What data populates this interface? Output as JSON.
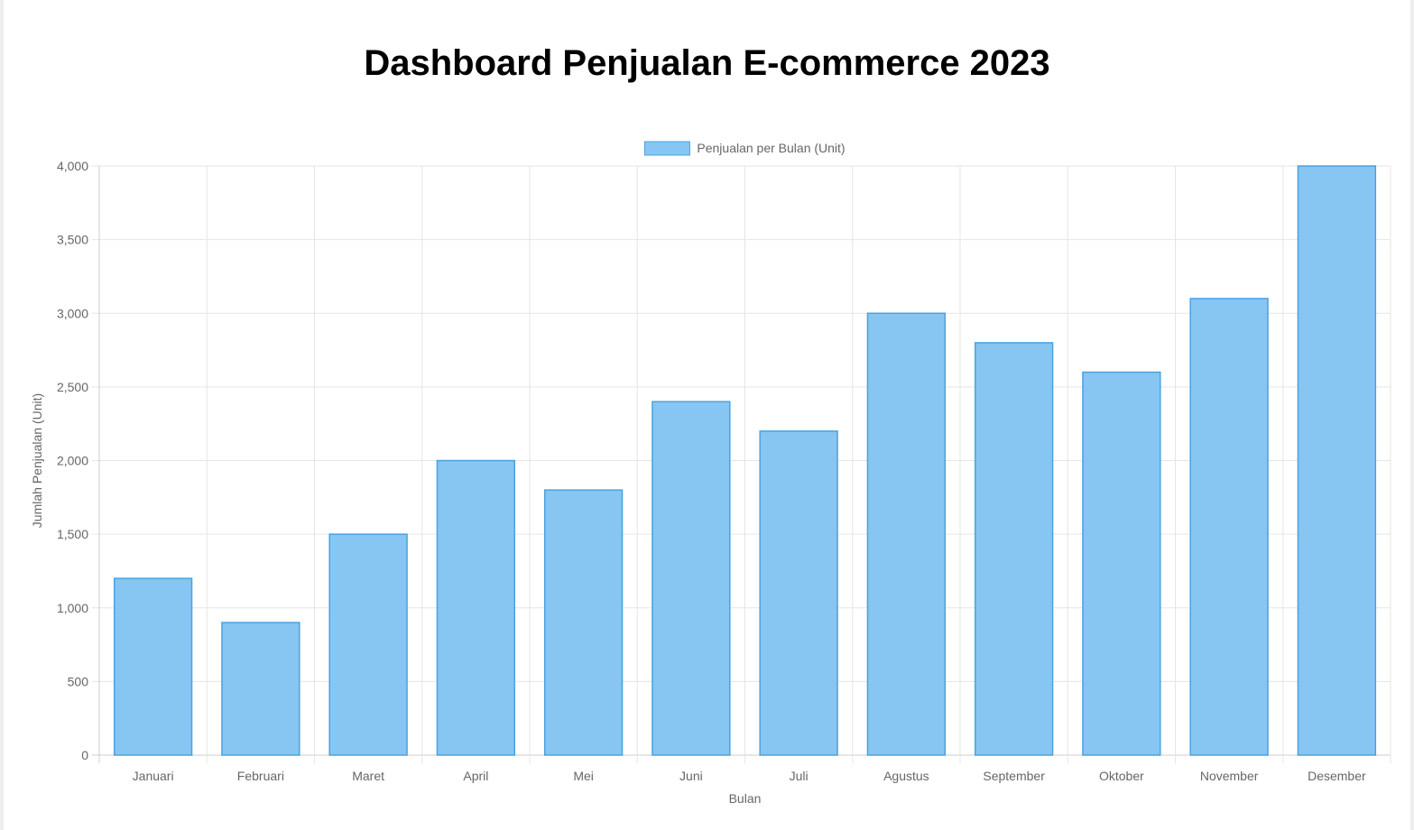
{
  "page": {
    "title": "Dashboard Penjualan E-commerce 2023"
  },
  "chart_data": {
    "type": "bar",
    "categories": [
      "Januari",
      "Februari",
      "Maret",
      "April",
      "Mei",
      "Juni",
      "Juli",
      "Agustus",
      "September",
      "Oktober",
      "November",
      "Desember"
    ],
    "series": [
      {
        "name": "Penjualan per Bulan (Unit)",
        "values": [
          1200,
          900,
          1500,
          2000,
          1800,
          2400,
          2200,
          3000,
          2800,
          2600,
          3100,
          4000
        ]
      }
    ],
    "xlabel": "Bulan",
    "ylabel": "Jumlah Penjualan (Unit)",
    "ylim": [
      0,
      4000
    ],
    "yticks": [
      "0",
      "500",
      "1,000",
      "1,500",
      "2,000",
      "2,500",
      "3,000",
      "3,500",
      "4,000"
    ],
    "grid": true,
    "legend_position": "top-center",
    "colors": {
      "bar_fill": "#87c5f2",
      "bar_border": "#4aa3df",
      "grid": "#e5e5e5",
      "axis": "#cccccc",
      "text": "#666666"
    }
  }
}
